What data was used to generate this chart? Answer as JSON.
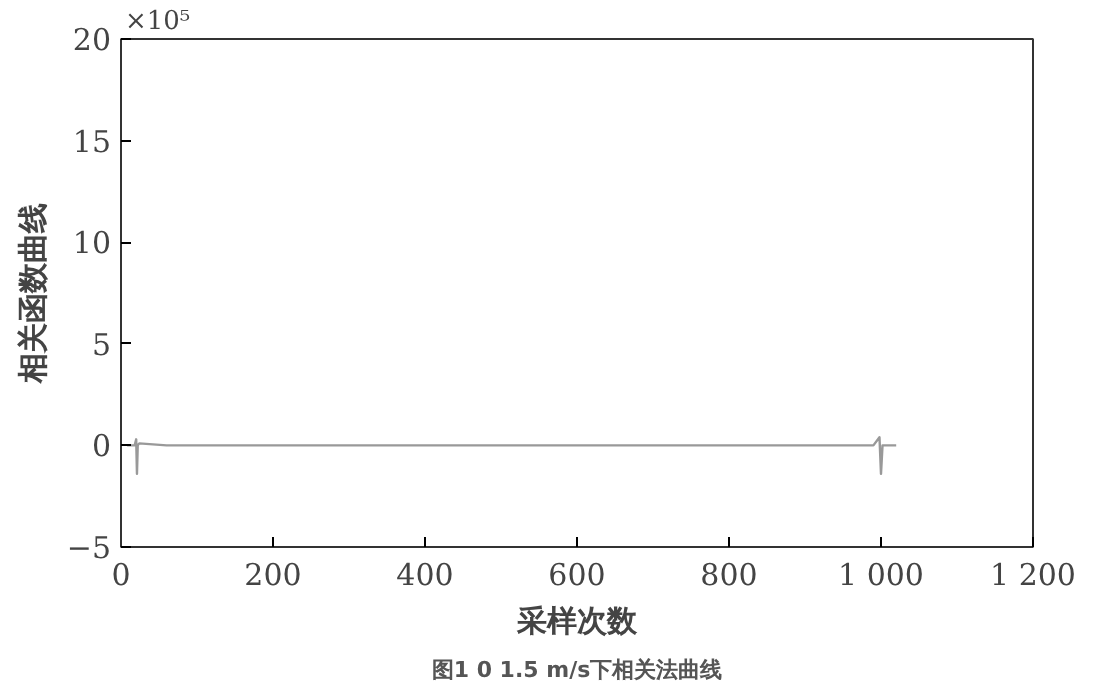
{
  "chart_data": {
    "type": "line",
    "xlabel": "采样次数",
    "ylabel": "相关函数曲线",
    "annotations": [
      "×10⁵",
      "图1 0 1.5 m/s下相关法曲线"
    ],
    "series": [
      {
        "color": "#999999",
        "x": [
          8,
          18,
          20,
          21,
          22,
          24,
          60,
          130,
          300,
          500,
          700,
          900,
          990,
          998,
          1000,
          1002,
          1020
        ],
        "values": [
          0,
          0,
          0.3,
          -1.4,
          0,
          0.1,
          0,
          0,
          0,
          0,
          0,
          0,
          0,
          0.4,
          -1.4,
          0,
          0
        ]
      }
    ],
    "xlim": [
      0,
      1200
    ],
    "ylim": [
      -5,
      20
    ],
    "xticks": [
      0,
      200,
      400,
      600,
      800,
      {
        "value": 1000,
        "label": "1 000"
      },
      {
        "value": 1200,
        "label": "1 200"
      }
    ],
    "yticks": [
      -5,
      0,
      5,
      10,
      15,
      20
    ],
    "grid": false
  }
}
